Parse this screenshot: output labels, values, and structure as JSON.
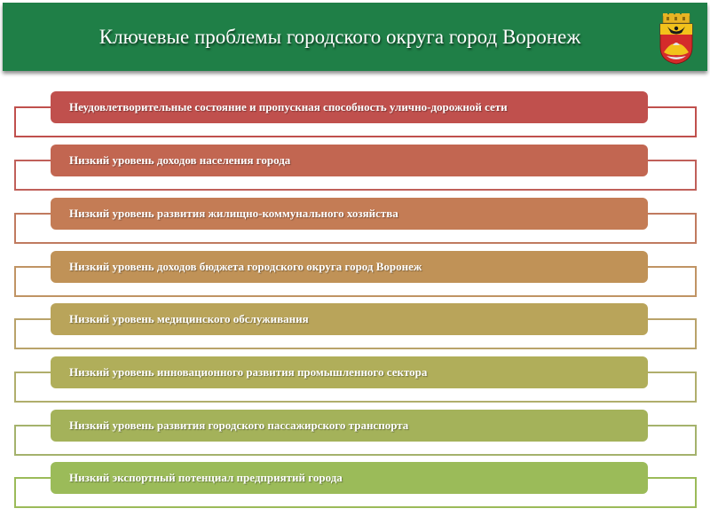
{
  "header": {
    "title": "Ключевые проблемы городского округа город Воронеж",
    "crest_icon": "voronezh-coat-of-arms-icon"
  },
  "problems": [
    {
      "label": "Неудовлетворительные состояние и пропускная способность улично-дорожной сети",
      "color": "#c0504d",
      "border": "#c0504d"
    },
    {
      "label": "Низкий уровень доходов населения города",
      "color": "#c26651",
      "border": "#c0605a"
    },
    {
      "label": "Низкий уровень развития жилищно-коммунального хозяйства",
      "color": "#c47c55",
      "border": "#c07a5f"
    },
    {
      "label": "Низкий уровень доходов бюджета городского округа город Воронеж",
      "color": "#c09257",
      "border": "#c09464"
    },
    {
      "label": "Низкий уровень медицинского обслуживания",
      "color": "#b9a45a",
      "border": "#b9a36a"
    },
    {
      "label": "Низкий уровень инновационного развития промышленного сектора",
      "color": "#b0ae5a",
      "border": "#b0ae6c"
    },
    {
      "label": "Низкий уровень развития городского пассажирского транспорта",
      "color": "#a4b25a",
      "border": "#a4b26c"
    },
    {
      "label": "Низкий экспортный потенциал предприятий города",
      "color": "#9bbb59",
      "border": "#9bbb59"
    }
  ]
}
